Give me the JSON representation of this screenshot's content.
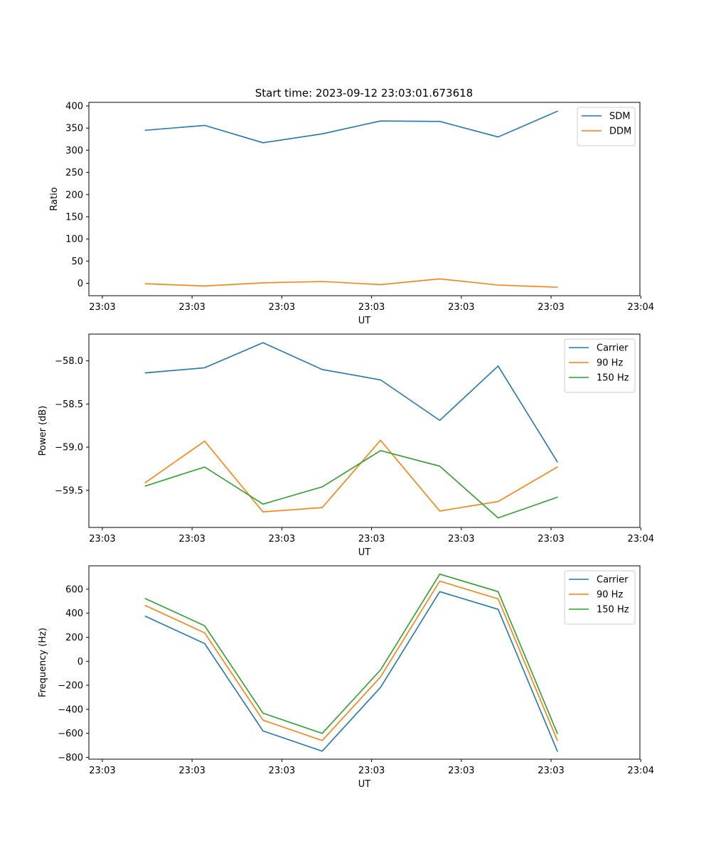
{
  "figure_title": "Start time: 2023-09-12 23:03:01.673618",
  "colors": {
    "blue": "#1f77b4",
    "orange": "#ff7f0e",
    "green": "#2ca02c"
  },
  "chart_data": [
    {
      "type": "line",
      "xlabel": "UT",
      "ylabel": "Ratio",
      "ylim": [
        -28,
        408
      ],
      "xlim": [
        -0.15,
        5.99
      ],
      "x_ticks": [
        0,
        1,
        2,
        3,
        4,
        5,
        6
      ],
      "x_tick_labels": [
        "23:03",
        "23:03",
        "23:03",
        "23:03",
        "23:03",
        "23:03",
        "23:04"
      ],
      "y_ticks": [
        0,
        50,
        100,
        150,
        200,
        250,
        300,
        350,
        400
      ],
      "y_tick_labels": [
        "0",
        "50",
        "100",
        "150",
        "200",
        "250",
        "300",
        "350",
        "400"
      ],
      "legend_position": "upper right",
      "x": [
        0.48,
        1.14,
        1.79,
        2.45,
        3.1,
        3.76,
        4.41,
        5.07
      ],
      "series": [
        {
          "name": "SDM",
          "color": "#1f77b4",
          "values": [
            345,
            356,
            317,
            337,
            366,
            365,
            330,
            388
          ]
        },
        {
          "name": "DDM",
          "color": "#ff7f0e",
          "values": [
            -1,
            -6,
            1,
            4,
            -3,
            10,
            -4,
            -9
          ]
        }
      ]
    },
    {
      "type": "line",
      "xlabel": "UT",
      "ylabel": "Power (dB)",
      "ylim": [
        -59.93,
        -57.69
      ],
      "xlim": [
        -0.15,
        5.99
      ],
      "x_ticks": [
        0,
        1,
        2,
        3,
        4,
        5,
        6
      ],
      "x_tick_labels": [
        "23:03",
        "23:03",
        "23:03",
        "23:03",
        "23:03",
        "23:03",
        "23:04"
      ],
      "y_ticks": [
        -59.5,
        -59.0,
        -58.5,
        -58.0
      ],
      "y_tick_labels": [
        "−59.5",
        "−59.0",
        "−58.5",
        "−58.0"
      ],
      "legend_position": "upper right",
      "x": [
        0.48,
        1.14,
        1.79,
        2.45,
        3.1,
        3.76,
        4.41,
        5.07
      ],
      "series": [
        {
          "name": "Carrier",
          "color": "#1f77b4",
          "values": [
            -58.14,
            -58.08,
            -57.79,
            -58.1,
            -58.22,
            -58.69,
            -58.06,
            -59.17
          ]
        },
        {
          "name": "90 Hz",
          "color": "#ff7f0e",
          "values": [
            -59.41,
            -58.93,
            -59.75,
            -59.7,
            -58.92,
            -59.74,
            -59.63,
            -59.23
          ]
        },
        {
          "name": "150 Hz",
          "color": "#2ca02c",
          "values": [
            -59.45,
            -59.23,
            -59.66,
            -59.46,
            -59.04,
            -59.22,
            -59.82,
            -59.58
          ]
        }
      ]
    },
    {
      "type": "line",
      "xlabel": "UT",
      "ylabel": "Frequency (Hz)",
      "ylim": [
        -815,
        795
      ],
      "xlim": [
        -0.15,
        5.99
      ],
      "x_ticks": [
        0,
        1,
        2,
        3,
        4,
        5,
        6
      ],
      "x_tick_labels": [
        "23:03",
        "23:03",
        "23:03",
        "23:03",
        "23:03",
        "23:03",
        "23:04"
      ],
      "y_ticks": [
        -800,
        -600,
        -400,
        -200,
        0,
        200,
        400,
        600
      ],
      "y_tick_labels": [
        "−800",
        "−600",
        "−400",
        "−200",
        "0",
        "200",
        "400",
        "600"
      ],
      "legend_position": "upper right",
      "x": [
        0.48,
        1.14,
        1.79,
        2.45,
        3.1,
        3.76,
        4.41,
        5.07
      ],
      "series": [
        {
          "name": "Carrier",
          "color": "#1f77b4",
          "values": [
            375,
            148,
            -580,
            -748,
            -218,
            580,
            433,
            -748
          ]
        },
        {
          "name": "90 Hz",
          "color": "#ff7f0e",
          "values": [
            465,
            237,
            -490,
            -660,
            -130,
            668,
            520,
            -658
          ]
        },
        {
          "name": "150 Hz",
          "color": "#2ca02c",
          "values": [
            522,
            296,
            -432,
            -600,
            -72,
            726,
            580,
            -600
          ]
        }
      ]
    }
  ]
}
